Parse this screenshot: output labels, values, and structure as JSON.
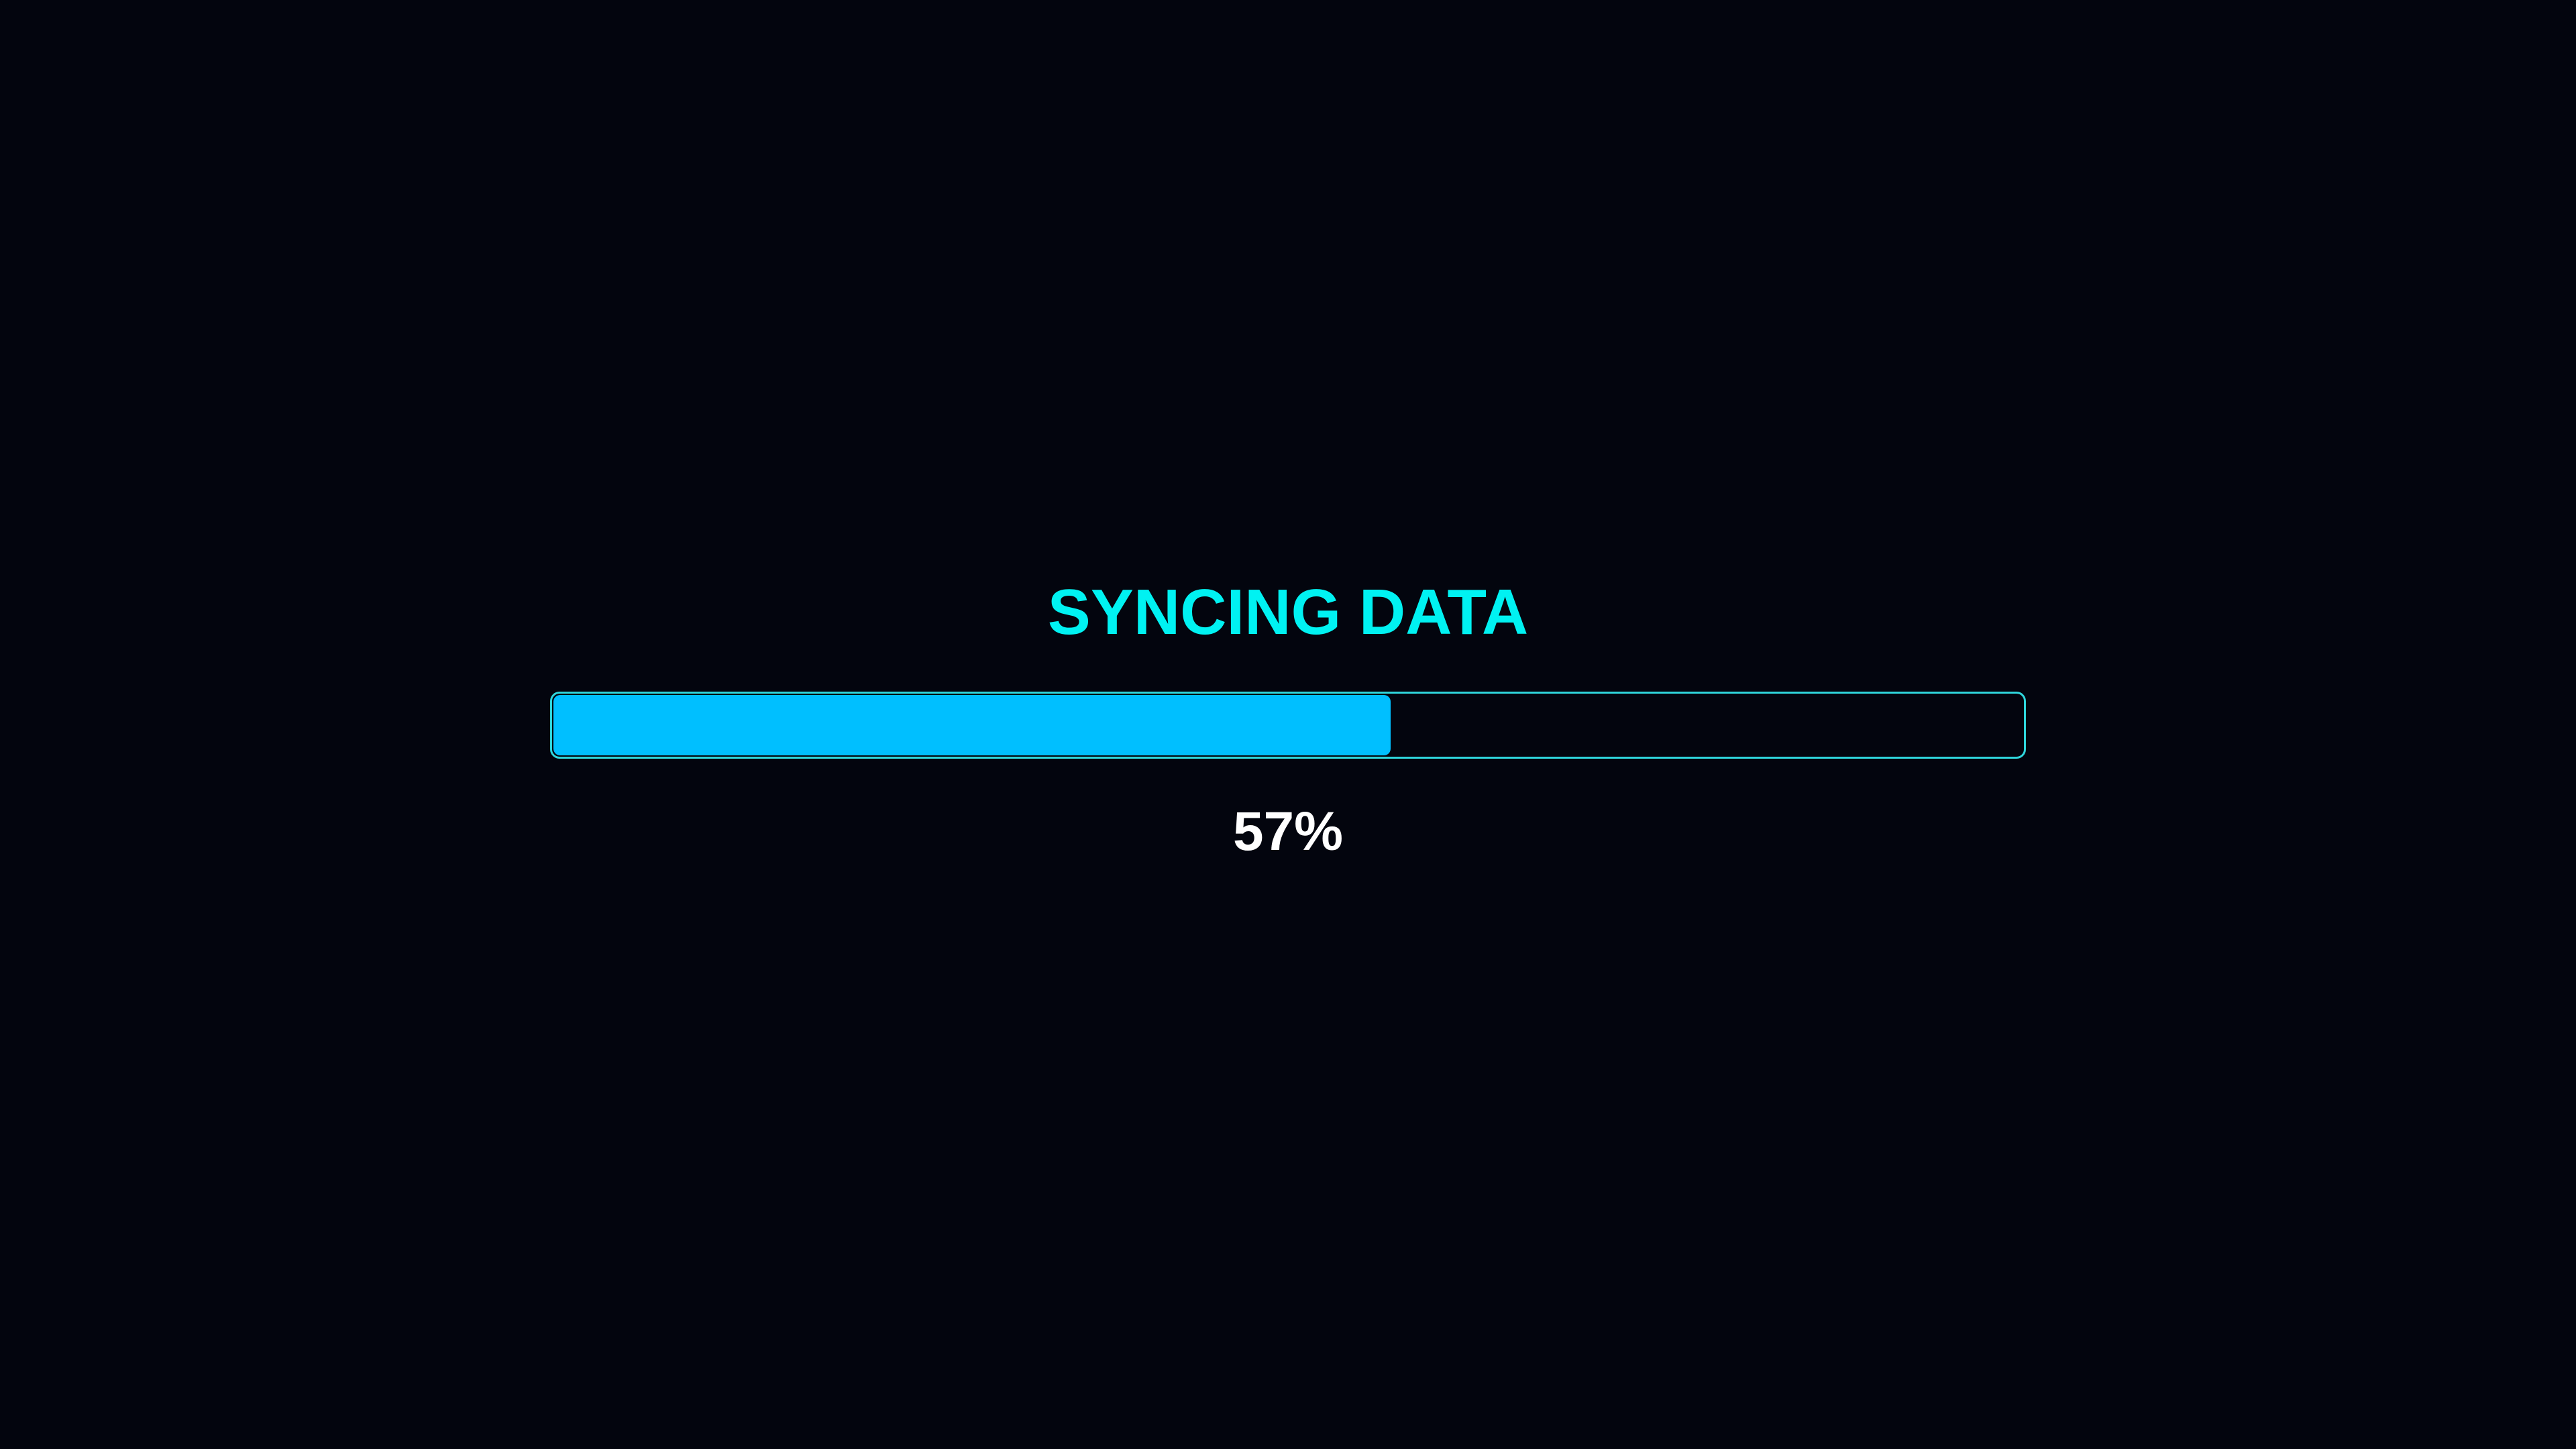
{
  "title": "SYNCING DATA",
  "progress": {
    "value_percent": 57,
    "label": "57%"
  },
  "colors": {
    "background": "#03050e",
    "title": "#00f2f2",
    "track_border": "#2fd6dc",
    "fill": "#00bfff",
    "label": "#ffffff"
  }
}
